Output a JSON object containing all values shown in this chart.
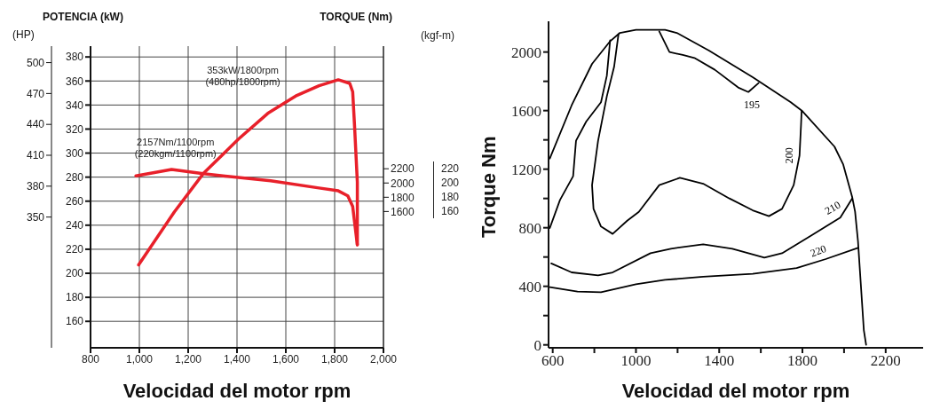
{
  "chart_data": [
    {
      "type": "line",
      "xlabel": "Velocidad del motor rpm",
      "ylabel": "POTENCIA (kW)",
      "y2label": "TORQUE (Nm)",
      "y3label": "(HP)",
      "xlim": [
        800,
        2000
      ],
      "xticks": [
        800,
        {
          "value": 1000,
          "label": "1,000"
        },
        {
          "value": 1200,
          "label": "1,200"
        },
        {
          "value": 1400,
          "label": "1,400"
        },
        {
          "value": 1600,
          "label": "1,600"
        },
        {
          "value": 1800,
          "label": "1,800"
        },
        {
          "value": 2000,
          "label": "2,000"
        }
      ],
      "ylim": [
        138,
        389
      ],
      "yticks": [
        160,
        180,
        200,
        220,
        240,
        260,
        280,
        300,
        320,
        340,
        360,
        380
      ],
      "y2lim": [
        -313,
        3921
      ],
      "y2ticks": [
        1600,
        1800,
        2000,
        2200
      ],
      "y3lim": [
        223,
        516
      ],
      "y3ticks": [
        350,
        380,
        410,
        440,
        470,
        500
      ],
      "grid": true,
      "series": [
        {
          "color": "#e8202a",
          "x": [
            997,
            1143,
            1262,
            1408,
            1526,
            1645,
            1736,
            1815,
            1862,
            1874,
            1882,
            1893,
            1893
          ],
          "values": [
            207,
            251,
            283,
            312,
            333,
            348,
            356,
            361,
            358,
            351,
            321,
            276,
            224
          ]
        },
        {
          "color": "#e8202a",
          "axis": "y2",
          "x": [
            986,
            1132,
            1262,
            1538,
            1736,
            1815,
            1854,
            1874,
            1893
          ],
          "values": [
            2100,
            2190,
            2130,
            2030,
            1930,
            1890,
            1820,
            1670,
            1130
          ]
        }
      ],
      "annotations": [
        "353kW/1800rpm\n(480hp/1800rpm)",
        "2157Nm/1100rpm\n(220kgm/1100rpm)",
        "(kgf-m)",
        "220",
        "200",
        "180",
        "160"
      ]
    },
    {
      "type": "line",
      "xlabel": "Velocidad del motor rpm",
      "ylabel": "Torque Nm",
      "xlim": [
        580,
        2380
      ],
      "xticks": [
        600,
        {
          "value": 800,
          "label": null
        },
        1000,
        {
          "value": 1200,
          "label": null
        },
        1400,
        {
          "value": 1600,
          "label": null
        },
        1800,
        {
          "value": 2000,
          "label": null
        },
        2200
      ],
      "ylim": [
        -20,
        2210
      ],
      "yticks": [
        0,
        {
          "value": 200,
          "label": null
        },
        400,
        {
          "value": 600,
          "label": null
        },
        800,
        {
          "value": 1000,
          "label": null
        },
        1200,
        {
          "value": 1400,
          "label": null
        },
        1600,
        {
          "value": 1800,
          "label": null
        },
        2000
      ],
      "series": [
        {
          "color": "#000000",
          "x": [
            586,
            691,
            789,
            874,
            923,
            1000,
            1140,
            1196,
            1351,
            1561,
            1744,
            1800,
            1954,
            1996,
            2039,
            2053,
            2067,
            2081,
            2095,
            2106
          ],
          "values": [
            1273,
            1636,
            1919,
            2071,
            2131,
            2152,
            2152,
            2131,
            2010,
            1828,
            1657,
            1596,
            1354,
            1232,
            1010,
            909,
            707,
            404,
            101,
            0
          ]
        },
        {
          "color": "#000000",
          "x": [
            586,
            635,
            698,
            712,
            761,
            832,
            860,
            876
          ],
          "values": [
            798,
            990,
            1152,
            1394,
            1525,
            1657,
            1838,
            2081
          ]
        },
        {
          "name": "195",
          "color": "#000000",
          "x": [
            1112,
            1161,
            1225,
            1281,
            1379,
            1491,
            1540,
            1589
          ],
          "values": [
            2141,
            2000,
            1980,
            1960,
            1879,
            1758,
            1727,
            1788
          ]
        },
        {
          "name": "200",
          "color": "#000000",
          "x": [
            916,
            895,
            860,
            818,
            789,
            796,
            832,
            888,
            958,
            1014,
            1112,
            1211,
            1323,
            1449,
            1561,
            1639,
            1702,
            1758,
            1786,
            1793,
            1796
          ],
          "values": [
            2121,
            1899,
            1697,
            1394,
            1091,
            929,
            808,
            758,
            848,
            909,
            1091,
            1141,
            1101,
            1000,
            919,
            879,
            929,
            1091,
            1293,
            1495,
            1596
          ]
        },
        {
          "name": "210",
          "color": "#000000",
          "x": [
            593,
            691,
            818,
            888,
            1070,
            1168,
            1323,
            1463,
            1617,
            1702,
            1842,
            1982,
            2039
          ],
          "values": [
            556,
            495,
            475,
            495,
            626,
            657,
            687,
            657,
            596,
            626,
            747,
            869,
            1000
          ]
        },
        {
          "name": "220",
          "color": "#000000",
          "x": [
            586,
            719,
            832,
            1000,
            1140,
            1323,
            1561,
            1772,
            1912,
            2067
          ],
          "values": [
            394,
            364,
            360,
            414,
            444,
            465,
            485,
            525,
            586,
            663
          ]
        }
      ]
    }
  ]
}
